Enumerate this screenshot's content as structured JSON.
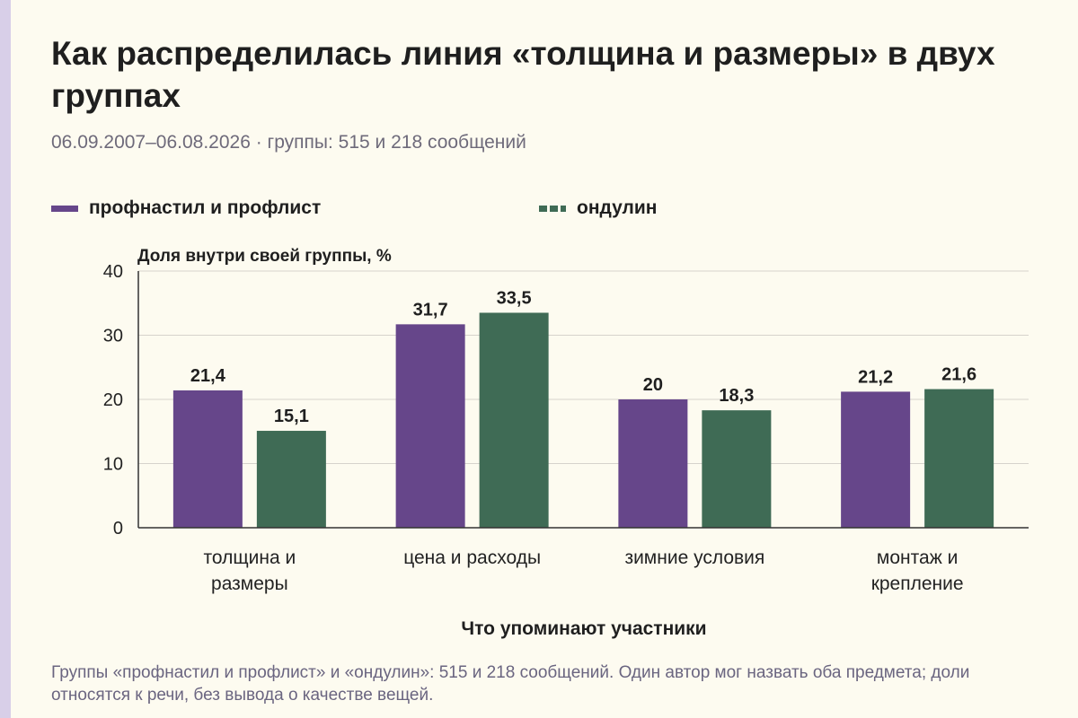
{
  "title": "Как распределилась линия «толщина и размеры» в двух группах",
  "subtitle": "06.09.2007–06.08.2026 · группы: 515 и 218 сообщений",
  "footnote": "Группы «профнастил и профлист» и «ондулин»: 515 и 218 сообщений. Один автор мог назвать оба предмета; доли относятся к речи, без вывода о качестве вещей.",
  "legend": [
    {
      "label": "профнастил и профлист",
      "color": "#66468a",
      "style": "solid"
    },
    {
      "label": "ондулин",
      "color": "#3f6b55",
      "style": "dashed"
    }
  ],
  "chart_data": {
    "type": "bar",
    "ylabel": "Доля внутри своей группы, %",
    "xlabel": "Что упоминают участники",
    "ylim": [
      0,
      40
    ],
    "yticks": [
      0,
      10,
      20,
      30,
      40
    ],
    "grid": true,
    "categories": [
      [
        "толщина и",
        "размеры"
      ],
      [
        "цена и расходы"
      ],
      [
        "зимние условия"
      ],
      [
        "монтаж и",
        "крепление"
      ]
    ],
    "series": [
      {
        "name": "профнастил и профлист",
        "color": "#66468a",
        "values": [
          21.4,
          31.7,
          20,
          21.2
        ],
        "labels": [
          "21,4",
          "31,7",
          "20",
          "21,2"
        ]
      },
      {
        "name": "ондулин",
        "color": "#3f6b55",
        "values": [
          15.1,
          33.5,
          18.3,
          21.6
        ],
        "labels": [
          "15,1",
          "33,5",
          "18,3",
          "21,6"
        ]
      }
    ]
  }
}
